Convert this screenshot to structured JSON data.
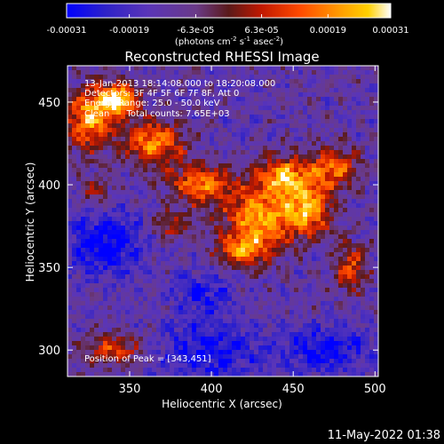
{
  "chart_data": {
    "type": "heatmap",
    "title": "Reconstructed RHESSI Image",
    "xlabel": "Heliocentric X (arcsec)",
    "ylabel": "Heliocentric Y (arcsec)",
    "xlim": [
      312,
      502
    ],
    "ylim": [
      284,
      472
    ],
    "x_ticks": [
      350,
      400,
      450,
      500
    ],
    "y_ticks": [
      300,
      350,
      400,
      450
    ],
    "colorbar": {
      "range": [
        -0.00031,
        0.00031
      ],
      "tick_values": [
        -0.00031,
        -0.00019,
        -6.3e-05,
        6.3e-05,
        0.00019,
        0.00031
      ],
      "tick_labels": [
        "-0.00031",
        "-0.00019",
        "-6.3e-05",
        "6.3e-05",
        "0.00019",
        "0.00031"
      ],
      "unit_main": "(photons cm",
      "unit_exp1": "-2",
      "unit_mid": " s",
      "unit_exp2": "-1",
      "unit_mid2": " asec",
      "unit_exp3": "-2",
      "unit_close": ")",
      "colormap": [
        "#0000ff",
        "#3a1fb8",
        "#6a3db0",
        "#7a3a78",
        "#8a1e1e",
        "#c81e00",
        "#ff4a00",
        "#ff9a00",
        "#ffd000",
        "#ffffff"
      ]
    },
    "annotations": {
      "time": "13-Jan-2013 18:14:08.000 to 18:20:08.000",
      "detectors": "Detectors: 3F 4F 5F 6F 7F 8F, Att 0",
      "energy": "Energy Range: 25.0 - 50.0 keV",
      "method": "Clean      Total counts: 7.65E+03",
      "peak": "Position of Peak = [343,451]"
    },
    "peak": [
      343,
      451
    ],
    "bright_regions": [
      {
        "x": 325,
        "y": 440,
        "rx": 14,
        "ry": 18,
        "amp": 1.0
      },
      {
        "x": 343,
        "y": 451,
        "rx": 12,
        "ry": 10,
        "amp": 1.2
      },
      {
        "x": 365,
        "y": 425,
        "rx": 18,
        "ry": 14,
        "amp": 0.9
      },
      {
        "x": 395,
        "y": 400,
        "rx": 20,
        "ry": 12,
        "amp": 0.85
      },
      {
        "x": 430,
        "y": 380,
        "rx": 22,
        "ry": 18,
        "amp": 1.0
      },
      {
        "x": 445,
        "y": 405,
        "rx": 16,
        "ry": 12,
        "amp": 0.95
      },
      {
        "x": 460,
        "y": 385,
        "rx": 14,
        "ry": 16,
        "amp": 0.9
      },
      {
        "x": 475,
        "y": 410,
        "rx": 14,
        "ry": 12,
        "amp": 0.8
      },
      {
        "x": 420,
        "y": 360,
        "rx": 16,
        "ry": 10,
        "amp": 0.75
      },
      {
        "x": 485,
        "y": 350,
        "rx": 10,
        "ry": 14,
        "amp": 0.65
      },
      {
        "x": 340,
        "y": 300,
        "rx": 18,
        "ry": 10,
        "amp": 0.6
      },
      {
        "x": 375,
        "y": 375,
        "rx": 12,
        "ry": 8,
        "amp": 0.5
      },
      {
        "x": 330,
        "y": 395,
        "rx": 10,
        "ry": 10,
        "amp": 0.45
      }
    ],
    "dim_regions": [
      {
        "x": 335,
        "y": 365,
        "rx": 22,
        "ry": 20,
        "amp": -0.6
      },
      {
        "x": 400,
        "y": 300,
        "rx": 30,
        "ry": 18,
        "amp": -0.5
      },
      {
        "x": 470,
        "y": 300,
        "rx": 25,
        "ry": 14,
        "amp": -0.55
      },
      {
        "x": 395,
        "y": 335,
        "rx": 18,
        "ry": 12,
        "amp": -0.4
      }
    ]
  },
  "footer": {
    "timestamp": "11-May-2022 01:38"
  }
}
